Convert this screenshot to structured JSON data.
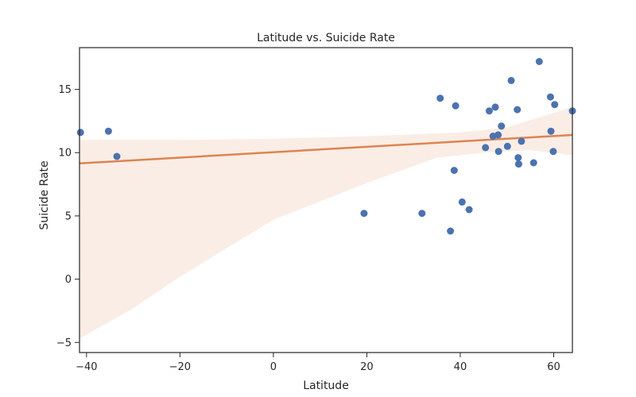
{
  "chart_data": {
    "type": "scatter",
    "title": "Latitude vs. Suicide Rate",
    "xlabel": "Latitude",
    "ylabel": "Suicide Rate",
    "xlim": [
      -41.5,
      64
    ],
    "ylim": [
      -5.8,
      18.3
    ],
    "xticks": [
      -40,
      -20,
      0,
      20,
      40,
      60
    ],
    "xtick_labels": [
      "−40",
      "−20",
      "0",
      "20",
      "40",
      "60"
    ],
    "yticks": [
      -5,
      0,
      5,
      10,
      15
    ],
    "ytick_labels": [
      "−5",
      "0",
      "5",
      "10",
      "15"
    ],
    "grid": false,
    "points": [
      {
        "x": -41.3,
        "y": 11.6
      },
      {
        "x": -35.3,
        "y": 11.7
      },
      {
        "x": -33.5,
        "y": 9.7
      },
      {
        "x": 19.4,
        "y": 5.2
      },
      {
        "x": 31.8,
        "y": 5.2
      },
      {
        "x": 35.7,
        "y": 14.3
      },
      {
        "x": 37.9,
        "y": 3.8
      },
      {
        "x": 38.7,
        "y": 8.6
      },
      {
        "x": 39.0,
        "y": 13.7
      },
      {
        "x": 40.4,
        "y": 6.1
      },
      {
        "x": 41.9,
        "y": 5.5
      },
      {
        "x": 45.4,
        "y": 10.4
      },
      {
        "x": 46.2,
        "y": 13.3
      },
      {
        "x": 47.0,
        "y": 11.3
      },
      {
        "x": 47.5,
        "y": 13.6
      },
      {
        "x": 48.1,
        "y": 11.4
      },
      {
        "x": 48.2,
        "y": 10.1
      },
      {
        "x": 48.8,
        "y": 12.1
      },
      {
        "x": 50.1,
        "y": 10.5
      },
      {
        "x": 50.9,
        "y": 15.7
      },
      {
        "x": 52.2,
        "y": 13.4
      },
      {
        "x": 52.4,
        "y": 9.6
      },
      {
        "x": 52.5,
        "y": 9.1
      },
      {
        "x": 53.1,
        "y": 10.9
      },
      {
        "x": 55.7,
        "y": 9.2
      },
      {
        "x": 56.9,
        "y": 17.2
      },
      {
        "x": 59.3,
        "y": 14.4
      },
      {
        "x": 59.4,
        "y": 11.7
      },
      {
        "x": 59.9,
        "y": 10.1
      },
      {
        "x": 60.2,
        "y": 13.8
      },
      {
        "x": 64.0,
        "y": 13.3
      }
    ],
    "regression": {
      "line": [
        [
          -41.5,
          9.15
        ],
        [
          64,
          11.4
        ]
      ],
      "ci_upper": [
        [
          -41.5,
          11.0
        ],
        [
          -20,
          11.0
        ],
        [
          0,
          11.1
        ],
        [
          20,
          11.3
        ],
        [
          40,
          11.6
        ],
        [
          50,
          12.0
        ],
        [
          64,
          13.6
        ]
      ],
      "ci_lower": [
        [
          -41.5,
          -4.7
        ],
        [
          -30,
          -2.3
        ],
        [
          -20,
          0.2
        ],
        [
          0,
          4.7
        ],
        [
          20,
          7.6
        ],
        [
          35,
          9.6
        ],
        [
          45,
          10.0
        ],
        [
          55,
          10.2
        ],
        [
          64,
          9.8
        ]
      ],
      "line_color": "#dd8452",
      "band_color": "#dd8452"
    },
    "point_color": "#4c72b0"
  }
}
